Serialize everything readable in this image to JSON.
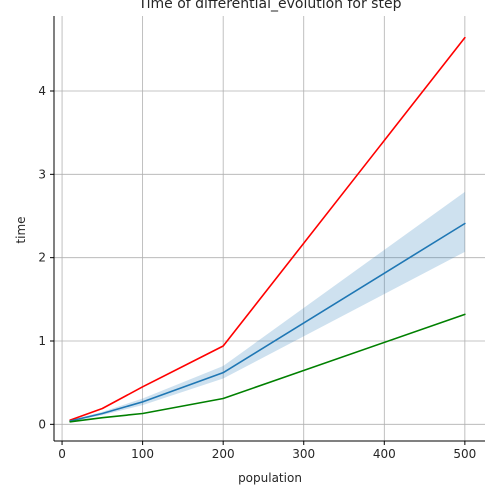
{
  "chart_data": {
    "type": "line",
    "title": "Time of differential_evolution for step",
    "xlabel": "population",
    "ylabel": "time",
    "x": [
      10,
      50,
      100,
      200,
      500
    ],
    "xlim": [
      -10,
      525
    ],
    "ylim": [
      -0.2,
      4.9
    ],
    "xticks": [
      0,
      100,
      200,
      300,
      400,
      500
    ],
    "yticks": [
      0,
      1,
      2,
      3,
      4
    ],
    "grid": true,
    "series": [
      {
        "color": "#ff0000",
        "values": [
          0.05,
          0.19,
          0.45,
          0.94,
          4.64
        ]
      },
      {
        "color": "#1f77b4",
        "values": [
          0.04,
          0.13,
          0.27,
          0.62,
          2.41
        ],
        "band_low": [
          0.03,
          0.11,
          0.23,
          0.55,
          2.07
        ],
        "band_high": [
          0.05,
          0.15,
          0.31,
          0.7,
          2.79
        ]
      },
      {
        "color": "#008000",
        "values": [
          0.03,
          0.08,
          0.13,
          0.31,
          1.32
        ]
      }
    ]
  }
}
